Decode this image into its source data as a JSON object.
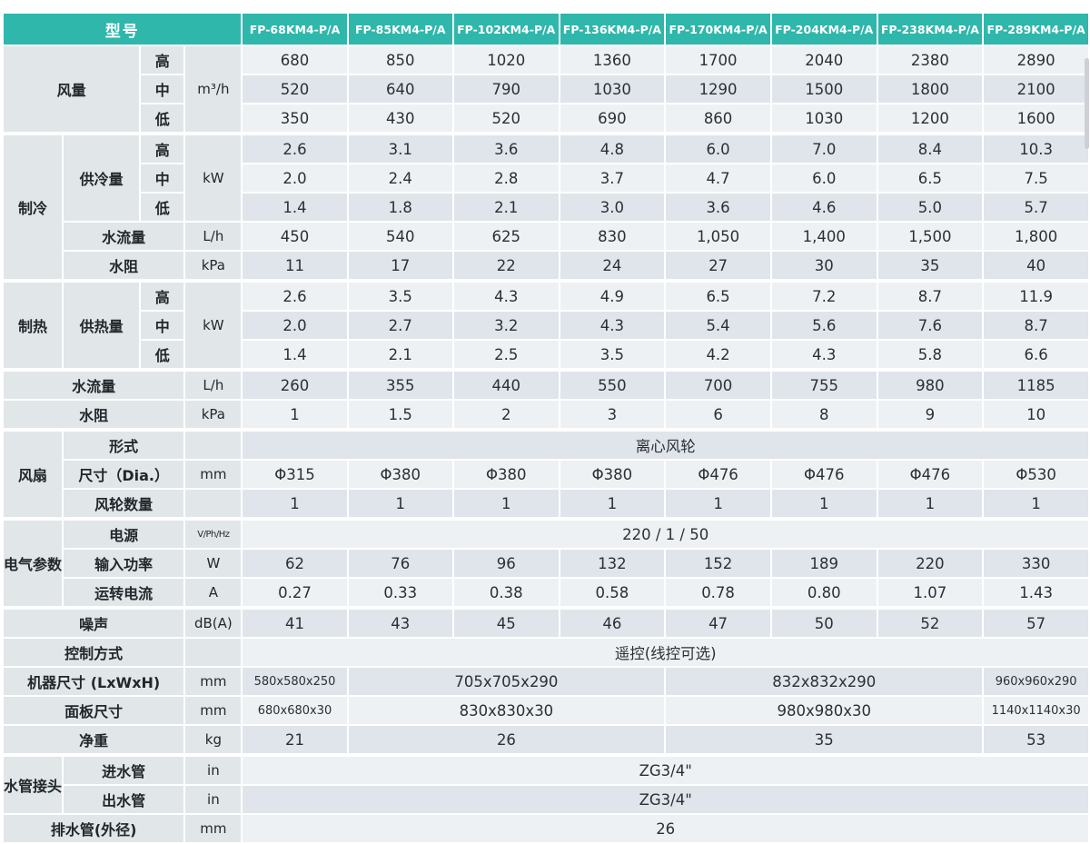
{
  "colors": {
    "header_teal": "#2fb7ab",
    "label_cell_bg": "#e1e6e9",
    "row_light": "#eef1f4",
    "row_dark": "#e0e5eb",
    "text": "#2b3035"
  },
  "table": {
    "header": {
      "cells": [
        [
          "h",
          "型号",
          4
        ],
        [
          "hm",
          "FP-68KM4-P/A"
        ],
        [
          "hm",
          "FP-85KM4-P/A"
        ],
        [
          "hm",
          "FP-102KM4-P/A"
        ],
        [
          "hm",
          "FP-136KM4-P/A"
        ],
        [
          "hm",
          "FP-170KM4-P/A"
        ],
        [
          "hm",
          "FP-204KM4-P/A"
        ],
        [
          "hm",
          "FP-238KM4-P/A"
        ],
        [
          "hm",
          "FP-289KM4-P/A"
        ]
      ]
    },
    "rows": [
      {
        "sec": false,
        "st": "l",
        "cells": [
          [
            "g",
            "风量",
            2,
            3
          ],
          [
            "l",
            "高"
          ],
          [
            "u",
            "m³/h",
            1,
            3
          ],
          [
            "d",
            "680"
          ],
          [
            "d",
            "850"
          ],
          [
            "d",
            "1020"
          ],
          [
            "d",
            "1360"
          ],
          [
            "d",
            "1700"
          ],
          [
            "d",
            "2040"
          ],
          [
            "d",
            "2380"
          ],
          [
            "d",
            "2890"
          ]
        ]
      },
      {
        "sec": false,
        "st": "d",
        "cells": [
          [
            "l",
            "中"
          ],
          [
            "d",
            "520"
          ],
          [
            "d",
            "640"
          ],
          [
            "d",
            "790"
          ],
          [
            "d",
            "1030"
          ],
          [
            "d",
            "1290"
          ],
          [
            "d",
            "1500"
          ],
          [
            "d",
            "1800"
          ],
          [
            "d",
            "2100"
          ]
        ]
      },
      {
        "sec": false,
        "st": "l",
        "cells": [
          [
            "l",
            "低"
          ],
          [
            "d",
            "350"
          ],
          [
            "d",
            "430"
          ],
          [
            "d",
            "520"
          ],
          [
            "d",
            "690"
          ],
          [
            "d",
            "860"
          ],
          [
            "d",
            "1030"
          ],
          [
            "d",
            "1200"
          ],
          [
            "d",
            "1600"
          ]
        ]
      },
      {
        "sec": true,
        "st": "d",
        "cells": [
          [
            "g",
            "制冷",
            1,
            5
          ],
          [
            "s",
            "供冷量",
            1,
            3
          ],
          [
            "l",
            "高"
          ],
          [
            "u",
            "kW",
            1,
            3
          ],
          [
            "d",
            "2.6"
          ],
          [
            "d",
            "3.1"
          ],
          [
            "d",
            "3.6"
          ],
          [
            "d",
            "4.8"
          ],
          [
            "d",
            "6.0"
          ],
          [
            "d",
            "7.0"
          ],
          [
            "d",
            "8.4"
          ],
          [
            "d",
            "10.3"
          ]
        ]
      },
      {
        "sec": false,
        "st": "l",
        "cells": [
          [
            "l",
            "中"
          ],
          [
            "d",
            "2.0"
          ],
          [
            "d",
            "2.4"
          ],
          [
            "d",
            "2.8"
          ],
          [
            "d",
            "3.7"
          ],
          [
            "d",
            "4.7"
          ],
          [
            "d",
            "6.0"
          ],
          [
            "d",
            "6.5"
          ],
          [
            "d",
            "7.5"
          ]
        ]
      },
      {
        "sec": false,
        "st": "d",
        "cells": [
          [
            "l",
            "低"
          ],
          [
            "d",
            "1.4"
          ],
          [
            "d",
            "1.8"
          ],
          [
            "d",
            "2.1"
          ],
          [
            "d",
            "3.0"
          ],
          [
            "d",
            "3.6"
          ],
          [
            "d",
            "4.6"
          ],
          [
            "d",
            "5.0"
          ],
          [
            "d",
            "5.7"
          ]
        ]
      },
      {
        "sec": false,
        "st": "l",
        "cells": [
          [
            "s",
            "水流量",
            2
          ],
          [
            "u",
            "L/h"
          ],
          [
            "d",
            "450"
          ],
          [
            "d",
            "540"
          ],
          [
            "d",
            "625"
          ],
          [
            "d",
            "830"
          ],
          [
            "d",
            "1,050"
          ],
          [
            "d",
            "1,400"
          ],
          [
            "d",
            "1,500"
          ],
          [
            "d",
            "1,800"
          ]
        ]
      },
      {
        "sec": false,
        "st": "d",
        "cells": [
          [
            "s",
            "水阻",
            2
          ],
          [
            "u",
            "kPa"
          ],
          [
            "d",
            "11"
          ],
          [
            "d",
            "17"
          ],
          [
            "d",
            "22"
          ],
          [
            "d",
            "24"
          ],
          [
            "d",
            "27"
          ],
          [
            "d",
            "30"
          ],
          [
            "d",
            "35"
          ],
          [
            "d",
            "40"
          ]
        ]
      },
      {
        "sec": true,
        "st": "l",
        "cells": [
          [
            "g",
            "制热",
            1,
            3
          ],
          [
            "s",
            "供热量",
            1,
            3
          ],
          [
            "l",
            "高"
          ],
          [
            "u",
            "kW",
            1,
            3
          ],
          [
            "d",
            "2.6"
          ],
          [
            "d",
            "3.5"
          ],
          [
            "d",
            "4.3"
          ],
          [
            "d",
            "4.9"
          ],
          [
            "d",
            "6.5"
          ],
          [
            "d",
            "7.2"
          ],
          [
            "d",
            "8.7"
          ],
          [
            "d",
            "11.9"
          ]
        ]
      },
      {
        "sec": false,
        "st": "d",
        "cells": [
          [
            "l",
            "中"
          ],
          [
            "d",
            "2.0"
          ],
          [
            "d",
            "2.7"
          ],
          [
            "d",
            "3.2"
          ],
          [
            "d",
            "4.3"
          ],
          [
            "d",
            "5.4"
          ],
          [
            "d",
            "5.6"
          ],
          [
            "d",
            "7.6"
          ],
          [
            "d",
            "8.7"
          ]
        ]
      },
      {
        "sec": false,
        "st": "l",
        "cells": [
          [
            "l",
            "低"
          ],
          [
            "d",
            "1.4"
          ],
          [
            "d",
            "2.1"
          ],
          [
            "d",
            "2.5"
          ],
          [
            "d",
            "3.5"
          ],
          [
            "d",
            "4.2"
          ],
          [
            "d",
            "4.3"
          ],
          [
            "d",
            "5.8"
          ],
          [
            "d",
            "6.6"
          ]
        ]
      },
      {
        "sec": true,
        "st": "d",
        "cells": [
          [
            "s",
            "水流量",
            3
          ],
          [
            "u",
            "L/h"
          ],
          [
            "d",
            "260"
          ],
          [
            "d",
            "355"
          ],
          [
            "d",
            "440"
          ],
          [
            "d",
            "550"
          ],
          [
            "d",
            "700"
          ],
          [
            "d",
            "755"
          ],
          [
            "d",
            "980"
          ],
          [
            "d",
            "1185"
          ]
        ]
      },
      {
        "sec": false,
        "st": "l",
        "cells": [
          [
            "s",
            "水阻",
            3
          ],
          [
            "u",
            "kPa"
          ],
          [
            "d",
            "1"
          ],
          [
            "d",
            "1.5"
          ],
          [
            "d",
            "2"
          ],
          [
            "d",
            "3"
          ],
          [
            "d",
            "6"
          ],
          [
            "d",
            "8"
          ],
          [
            "d",
            "9"
          ],
          [
            "d",
            "10"
          ]
        ]
      },
      {
        "sec": true,
        "st": "d",
        "cells": [
          [
            "g",
            "风扇",
            1,
            3
          ],
          [
            "s",
            "形式",
            2
          ],
          [
            "u",
            ""
          ],
          [
            "w",
            "离心风轮",
            8
          ]
        ]
      },
      {
        "sec": false,
        "st": "l",
        "cells": [
          [
            "s",
            "尺寸（Dia.）",
            2
          ],
          [
            "u",
            "mm"
          ],
          [
            "d",
            "Φ315"
          ],
          [
            "d",
            "Φ380"
          ],
          [
            "d",
            "Φ380"
          ],
          [
            "d",
            "Φ380"
          ],
          [
            "d",
            "Φ476"
          ],
          [
            "d",
            "Φ476"
          ],
          [
            "d",
            "Φ476"
          ],
          [
            "d",
            "Φ530"
          ]
        ]
      },
      {
        "sec": false,
        "st": "d",
        "cells": [
          [
            "s",
            "风轮数量",
            2
          ],
          [
            "u",
            ""
          ],
          [
            "d",
            "1"
          ],
          [
            "d",
            "1"
          ],
          [
            "d",
            "1"
          ],
          [
            "d",
            "1"
          ],
          [
            "d",
            "1"
          ],
          [
            "d",
            "1"
          ],
          [
            "d",
            "1"
          ],
          [
            "d",
            "1"
          ]
        ]
      },
      {
        "sec": true,
        "st": "l",
        "cells": [
          [
            "g",
            "电气参数",
            1,
            3
          ],
          [
            "s",
            "电源",
            2
          ],
          [
            "u",
            "V/Ph/Hz",
            1,
            1,
            true
          ],
          [
            "w",
            "220 / 1 / 50",
            8
          ]
        ]
      },
      {
        "sec": false,
        "st": "d",
        "cells": [
          [
            "s",
            "输入功率",
            2
          ],
          [
            "u",
            "W"
          ],
          [
            "d",
            "62"
          ],
          [
            "d",
            "76"
          ],
          [
            "d",
            "96"
          ],
          [
            "d",
            "132"
          ],
          [
            "d",
            "152"
          ],
          [
            "d",
            "189"
          ],
          [
            "d",
            "220"
          ],
          [
            "d",
            "330"
          ]
        ]
      },
      {
        "sec": false,
        "st": "l",
        "cells": [
          [
            "s",
            "运转电流",
            2
          ],
          [
            "u",
            "A"
          ],
          [
            "d",
            "0.27"
          ],
          [
            "d",
            "0.33"
          ],
          [
            "d",
            "0.38"
          ],
          [
            "d",
            "0.58"
          ],
          [
            "d",
            "0.78"
          ],
          [
            "d",
            "0.80"
          ],
          [
            "d",
            "1.07"
          ],
          [
            "d",
            "1.43"
          ]
        ]
      },
      {
        "sec": true,
        "st": "d",
        "cells": [
          [
            "s",
            "噪声",
            3
          ],
          [
            "u",
            "dB(A)"
          ],
          [
            "d",
            "41"
          ],
          [
            "d",
            "43"
          ],
          [
            "d",
            "45"
          ],
          [
            "d",
            "46"
          ],
          [
            "d",
            "47"
          ],
          [
            "d",
            "50"
          ],
          [
            "d",
            "52"
          ],
          [
            "d",
            "57"
          ]
        ]
      },
      {
        "sec": false,
        "st": "l",
        "cells": [
          [
            "s",
            "控制方式",
            3
          ],
          [
            "u",
            ""
          ],
          [
            "w",
            "遥控(线控可选)",
            8
          ]
        ]
      },
      {
        "sec": false,
        "st": "d",
        "cells": [
          [
            "s",
            "机器尺寸 (LxWxH)",
            3
          ],
          [
            "u",
            "mm"
          ],
          [
            "d",
            "580x580x250",
            1,
            1,
            true
          ],
          [
            "d",
            "705x705x290",
            3
          ],
          [
            "d",
            "832x832x290",
            3
          ],
          [
            "d",
            "960x960x290",
            1,
            1,
            true
          ]
        ]
      },
      {
        "sec": false,
        "st": "l",
        "cells": [
          [
            "s",
            "面板尺寸",
            3
          ],
          [
            "u",
            "mm"
          ],
          [
            "d",
            "680x680x30",
            1,
            1,
            true
          ],
          [
            "d",
            "830x830x30",
            3
          ],
          [
            "d",
            "980x980x30",
            3
          ],
          [
            "d",
            "1140x1140x30",
            1,
            1,
            true
          ]
        ]
      },
      {
        "sec": false,
        "st": "d",
        "cells": [
          [
            "s",
            "净重",
            3
          ],
          [
            "u",
            "kg"
          ],
          [
            "d",
            "21"
          ],
          [
            "d",
            "26",
            3
          ],
          [
            "d",
            "35",
            3
          ],
          [
            "d",
            "53"
          ]
        ]
      },
      {
        "sec": true,
        "st": "l",
        "cells": [
          [
            "g",
            "水管接头",
            1,
            2
          ],
          [
            "s",
            "进水管",
            2
          ],
          [
            "u",
            "in"
          ],
          [
            "w",
            "ZG3/4\"",
            8
          ]
        ]
      },
      {
        "sec": false,
        "st": "d",
        "cells": [
          [
            "s",
            "出水管",
            2
          ],
          [
            "u",
            "in"
          ],
          [
            "w",
            "ZG3/4\"",
            8
          ]
        ]
      },
      {
        "sec": false,
        "st": "l",
        "cells": [
          [
            "s",
            "排水管(外径)",
            3
          ],
          [
            "u",
            "mm"
          ],
          [
            "w",
            "26",
            8
          ]
        ]
      }
    ]
  }
}
